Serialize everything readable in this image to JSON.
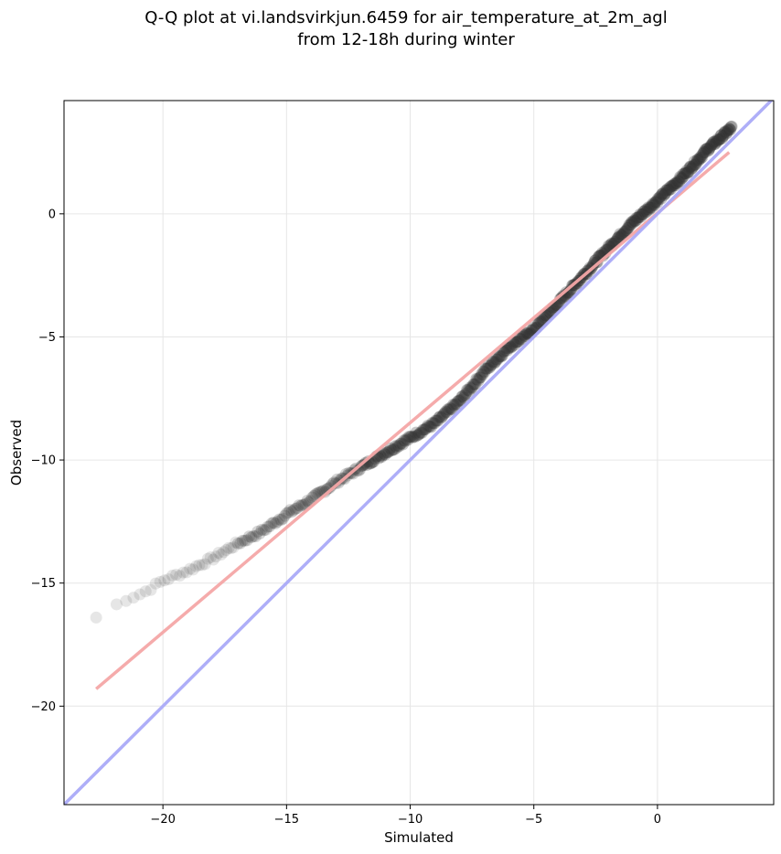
{
  "title_line1": "Q-Q plot at vi.landsvirkjun.6459 for air_temperature_at_2m_agl",
  "title_line2": "from 12-18h during winter",
  "chart_data": {
    "type": "scatter",
    "title": "Q-Q plot at vi.landsvirkjun.6459 for air_temperature_at_2m_agl from 12-18h during winter",
    "xlabel": "Simulated",
    "ylabel": "Observed",
    "xlim": [
      -24.0,
      4.7
    ],
    "ylim": [
      -24.0,
      4.6
    ],
    "xticks": [
      -20,
      -15,
      -10,
      -5,
      0
    ],
    "yticks": [
      0,
      -5,
      -10,
      -15,
      -20
    ],
    "xtick_labels": [
      "−20",
      "−15",
      "−10",
      "−5",
      "0"
    ],
    "ytick_labels": [
      "0",
      "−5",
      "−10",
      "−15",
      "−20"
    ],
    "grid": true,
    "quantile_curve": {
      "x": [
        -22.7,
        -21.6,
        -20.8,
        -20.0,
        -19.0,
        -18.0,
        -17.0,
        -16.0,
        -15.0,
        -14.0,
        -13.0,
        -12.0,
        -11.0,
        -10.0,
        -9.0,
        -8.0,
        -7.0,
        -6.0,
        -5.0,
        -4.0,
        -3.0,
        -2.0,
        -1.0,
        0.0,
        1.0,
        2.0,
        3.0
      ],
      "y": [
        -16.4,
        -15.7,
        -15.4,
        -14.9,
        -14.5,
        -14.0,
        -13.4,
        -12.9,
        -12.2,
        -11.6,
        -10.9,
        -10.3,
        -9.7,
        -9.1,
        -8.5,
        -7.6,
        -6.4,
        -5.4,
        -4.7,
        -3.6,
        -2.5,
        -1.4,
        -0.35,
        0.55,
        1.5,
        2.6,
        3.5
      ]
    },
    "series": [
      {
        "type": "line",
        "values_x": [
          -22.7,
          2.9
        ],
        "values_y": [
          -19.3,
          2.5
        ],
        "color": "#f4a6a6"
      },
      {
        "type": "line",
        "values_x": [
          -24.0,
          4.7
        ],
        "values_y": [
          -24.0,
          4.7
        ],
        "color": "#aaaaf8"
      }
    ],
    "point_color": "#333333"
  }
}
